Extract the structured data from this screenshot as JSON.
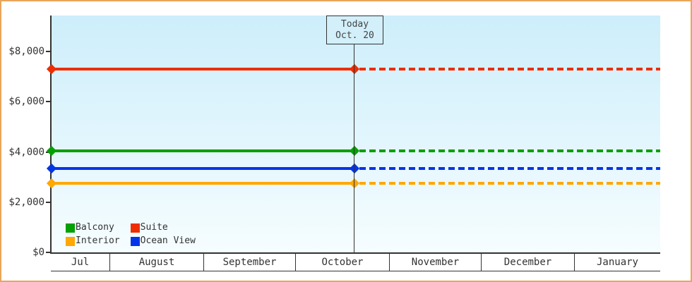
{
  "chart_data": {
    "type": "line",
    "title": "",
    "description": "Price history chart: horizontal fare lines, solid up to today then dotted projection",
    "y_axis": {
      "tick_labels": [
        "$0",
        "$2,000",
        "$4,000",
        "$6,000",
        "$8,000"
      ],
      "tick_values": [
        0,
        2000,
        4000,
        6000,
        8000
      ],
      "ylim": [
        0,
        9400
      ],
      "grid": false
    },
    "x_axis": {
      "categories": [
        "Jul",
        "August",
        "September",
        "October",
        "November",
        "December",
        "January"
      ]
    },
    "today": {
      "label_line1": "Today",
      "label_line2": "Oct. 20"
    },
    "series": [
      {
        "name": "Suite",
        "value": 7300,
        "color": "#ee2d00",
        "style": "solid-then-dashed"
      },
      {
        "name": "Balcony",
        "value": 4050,
        "color": "#04a004",
        "style": "solid-then-dashed"
      },
      {
        "name": "Ocean View",
        "value": 3350,
        "color": "#0335e8",
        "style": "solid-then-dashed"
      },
      {
        "name": "Interior",
        "value": 2750,
        "color": "#ffa702",
        "style": "solid-then-dashed"
      }
    ],
    "legend": {
      "position": "bottom-left-inside-plot",
      "entries": [
        {
          "label": "Balcony",
          "color": "#04a004"
        },
        {
          "label": "Suite",
          "color": "#ee2d00"
        },
        {
          "label": "Interior",
          "color": "#ffa702"
        },
        {
          "label": "Ocean View",
          "color": "#0335e8"
        }
      ]
    },
    "colors": {
      "axis": "#333333",
      "page_border": "#e9a55c",
      "plot_bg_top": "#cdeefb",
      "plot_bg_bottom": "#f6fdff",
      "today_box_fill": "#d2effa"
    }
  }
}
